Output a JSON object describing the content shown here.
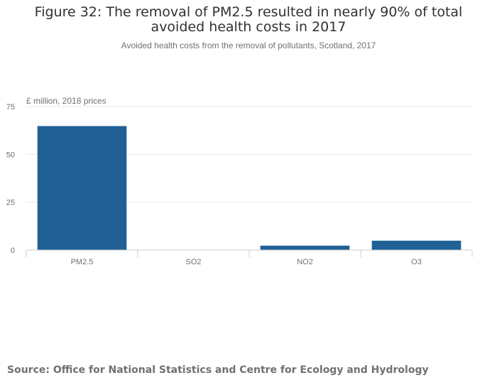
{
  "header": {
    "title": "Figure 32: The removal of PM2.5 resulted in nearly 90% of total avoided health costs in 2017",
    "subtitle": "Avoided health costs from the removal of pollutants, Scotland, 2017"
  },
  "footer": {
    "source": "Source: Office for National Statistics and Centre for Ecology and Hydrology"
  },
  "chart_data": {
    "type": "bar",
    "title": "Figure 32: The removal of PM2.5 resulted in nearly 90% of total avoided health costs in 2017",
    "subtitle": "Avoided health costs from the removal of pollutants, Scotland, 2017",
    "ylabel": "£ million, 2018 prices",
    "xlabel": "",
    "categories": [
      "PM2.5",
      "SO2",
      "NO2",
      "O3"
    ],
    "values": [
      64.8,
      0.1,
      2.3,
      4.9
    ],
    "ylim": [
      0,
      75
    ],
    "yticks": [
      0,
      25,
      50,
      75
    ],
    "grid": true,
    "bar_color": "#206095",
    "grid_color": "#e8e8e8",
    "axis_color": "#cccccc"
  }
}
